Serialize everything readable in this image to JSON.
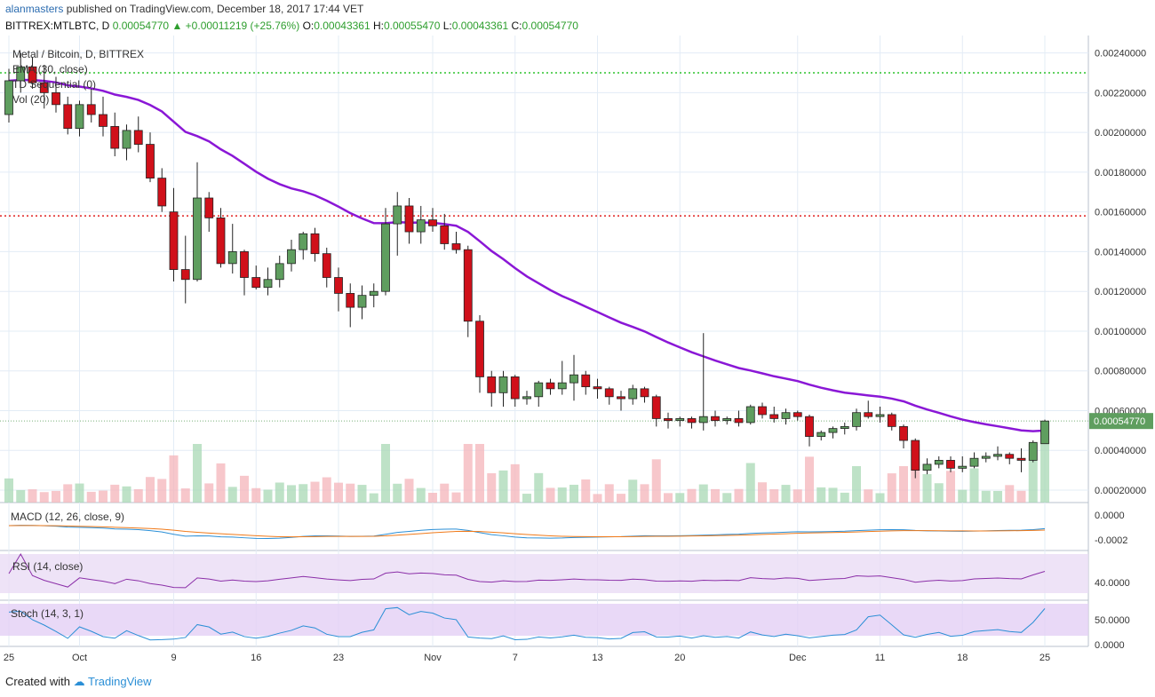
{
  "header": {
    "author": "alanmasters",
    "published_text": "published on TradingView.com, December 18, 2017 17:44 VET",
    "symbol": "BITTREX:MTLBTC, D",
    "last": "0.00054770",
    "change": "+0.00011219 (+25.76%)",
    "o_label": "O:",
    "o": "0.00043361",
    "h_label": "H:",
    "h": "0.00055470",
    "l_label": "L:",
    "l": "0.00043361",
    "c_label": "C:",
    "c": "0.00054770"
  },
  "legend": {
    "title": "Metal / Bitcoin, D, BITTREX",
    "ema": "EMA (30, close)",
    "td": "TD Sequential (0)",
    "vol": "Vol (20)"
  },
  "panes": {
    "macd": "MACD (12, 26, close, 9)",
    "rsi": "RSI (14, close)",
    "stoch": "Stoch (14, 3, 1)"
  },
  "colors": {
    "up": "#5f9e5f",
    "down": "#d0101a",
    "ema": "#8a17d6",
    "resistance": "#2fc42f",
    "support": "#e02020",
    "macd_line": "#2b8fd6",
    "signal_line": "#f07a1a",
    "rsi_line": "#8b2fa8",
    "stoch_k": "#2b8fd6",
    "stoch_d": "#e0401a",
    "grid": "#e3ecf6",
    "axis_text": "#333333"
  },
  "footer": {
    "created_with": "Created with",
    "brand": "TradingView"
  },
  "chart_data": {
    "type": "candlestick",
    "price_axis_labels": [
      "0.00240000",
      "0.00220000",
      "0.00200000",
      "0.00180000",
      "0.00160000",
      "0.00140000",
      "0.00120000",
      "0.00100000",
      "0.00080000",
      "0.00060000",
      "0.00040000",
      "0.00020000"
    ],
    "price_axis_values": [
      0.0024,
      0.0022,
      0.002,
      0.0018,
      0.0016,
      0.0014,
      0.0012,
      0.001,
      0.0008,
      0.0006,
      0.0004,
      0.0002
    ],
    "last_price_tag": "0.00054770",
    "last_price": 0.0005477,
    "resistance_level": 0.0023,
    "support_level": 0.00158,
    "x_labels": [
      "25",
      "Oct",
      "9",
      "16",
      "23",
      "Nov",
      "7",
      "13",
      "20",
      "Dec",
      "11",
      "18",
      "25"
    ],
    "x_label_index": [
      0,
      6,
      14,
      21,
      28,
      36,
      43,
      50,
      57,
      67,
      74,
      81,
      88
    ],
    "macd_axis_labels": [
      "0.0000",
      "-0.0002"
    ],
    "rsi_axis_labels": [
      "40.0000"
    ],
    "stoch_axis_labels": [
      "50.0000",
      "0.0000"
    ],
    "candles": [
      [
        0.00209,
        0.00232,
        0.00205,
        0.00226
      ],
      [
        0.00226,
        0.0024,
        0.0022,
        0.00233
      ],
      [
        0.00233,
        0.00238,
        0.00222,
        0.00225
      ],
      [
        0.00225,
        0.00234,
        0.00212,
        0.0022
      ],
      [
        0.0022,
        0.00228,
        0.0021,
        0.00214
      ],
      [
        0.00214,
        0.00218,
        0.00199,
        0.00202
      ],
      [
        0.00202,
        0.00216,
        0.00198,
        0.00214
      ],
      [
        0.00214,
        0.00222,
        0.00205,
        0.00209
      ],
      [
        0.00209,
        0.00218,
        0.00198,
        0.00203
      ],
      [
        0.00203,
        0.0021,
        0.00188,
        0.00192
      ],
      [
        0.00192,
        0.00204,
        0.00186,
        0.00201
      ],
      [
        0.00201,
        0.00208,
        0.0019,
        0.00194
      ],
      [
        0.00194,
        0.002,
        0.00175,
        0.00177
      ],
      [
        0.00177,
        0.00182,
        0.0016,
        0.00163
      ],
      [
        0.0016,
        0.00172,
        0.00125,
        0.00131
      ],
      [
        0.00131,
        0.00148,
        0.00114,
        0.00126
      ],
      [
        0.00126,
        0.00185,
        0.00125,
        0.00167
      ],
      [
        0.00167,
        0.0017,
        0.0015,
        0.00157
      ],
      [
        0.00157,
        0.00162,
        0.00132,
        0.00134
      ],
      [
        0.00134,
        0.00154,
        0.00129,
        0.0014
      ],
      [
        0.0014,
        0.00141,
        0.00118,
        0.00127
      ],
      [
        0.00127,
        0.00133,
        0.00121,
        0.00122
      ],
      [
        0.00122,
        0.00132,
        0.00118,
        0.00126
      ],
      [
        0.00126,
        0.00138,
        0.00122,
        0.00134
      ],
      [
        0.00134,
        0.00146,
        0.0013,
        0.00141
      ],
      [
        0.00141,
        0.0015,
        0.00136,
        0.00149
      ],
      [
        0.00149,
        0.00152,
        0.00135,
        0.00139
      ],
      [
        0.00139,
        0.00142,
        0.00122,
        0.00127
      ],
      [
        0.00127,
        0.00132,
        0.0011,
        0.00119
      ],
      [
        0.00119,
        0.00124,
        0.00102,
        0.00112
      ],
      [
        0.00112,
        0.00123,
        0.00106,
        0.00118
      ],
      [
        0.00118,
        0.00124,
        0.00112,
        0.0012
      ],
      [
        0.0012,
        0.00162,
        0.00118,
        0.00154
      ],
      [
        0.00154,
        0.0017,
        0.00138,
        0.00163
      ],
      [
        0.00163,
        0.00167,
        0.00144,
        0.0015
      ],
      [
        0.0015,
        0.00163,
        0.00144,
        0.00156
      ],
      [
        0.00156,
        0.00162,
        0.0015,
        0.00153
      ],
      [
        0.00153,
        0.00159,
        0.00141,
        0.00144
      ],
      [
        0.00144,
        0.0015,
        0.00139,
        0.00141
      ],
      [
        0.00141,
        0.00143,
        0.00097,
        0.00105
      ],
      [
        0.00105,
        0.00108,
        0.00069,
        0.00077
      ],
      [
        0.00077,
        0.0008,
        0.00062,
        0.00069
      ],
      [
        0.00069,
        0.0008,
        0.00062,
        0.00077
      ],
      [
        0.00077,
        0.00078,
        0.00062,
        0.00066
      ],
      [
        0.00066,
        0.0007,
        0.00063,
        0.00067
      ],
      [
        0.00067,
        0.00075,
        0.00062,
        0.00074
      ],
      [
        0.00074,
        0.00076,
        0.00068,
        0.00071
      ],
      [
        0.00071,
        0.00085,
        0.00068,
        0.00074
      ],
      [
        0.00074,
        0.00088,
        0.00065,
        0.00078
      ],
      [
        0.00078,
        0.0008,
        0.00068,
        0.00072
      ],
      [
        0.00072,
        0.00076,
        0.00066,
        0.00071
      ],
      [
        0.00071,
        0.00072,
        0.00063,
        0.00067
      ],
      [
        0.00067,
        0.0007,
        0.0006,
        0.00066
      ],
      [
        0.00066,
        0.00073,
        0.00063,
        0.00071
      ],
      [
        0.00071,
        0.00072,
        0.00064,
        0.00067
      ],
      [
        0.00067,
        0.00068,
        0.00052,
        0.00056
      ],
      [
        0.00056,
        0.00059,
        0.00051,
        0.00055
      ],
      [
        0.00055,
        0.00057,
        0.00052,
        0.00056
      ],
      [
        0.00056,
        0.00057,
        0.00051,
        0.00054
      ],
      [
        0.00054,
        0.00099,
        0.0005,
        0.00057
      ],
      [
        0.00057,
        0.0006,
        0.00052,
        0.00055
      ],
      [
        0.00055,
        0.00057,
        0.00053,
        0.00056
      ],
      [
        0.00056,
        0.0006,
        0.00052,
        0.00054
      ],
      [
        0.00054,
        0.00063,
        0.00053,
        0.00062
      ],
      [
        0.00062,
        0.00064,
        0.00056,
        0.00058
      ],
      [
        0.00058,
        0.00062,
        0.00054,
        0.00056
      ],
      [
        0.00056,
        0.00061,
        0.00053,
        0.00059
      ],
      [
        0.00059,
        0.0006,
        0.00055,
        0.00057
      ],
      [
        0.00057,
        0.00058,
        0.00042,
        0.00047
      ],
      [
        0.00047,
        0.0005,
        0.00045,
        0.00049
      ],
      [
        0.00049,
        0.00052,
        0.00046,
        0.00051
      ],
      [
        0.00051,
        0.00054,
        0.00048,
        0.00052
      ],
      [
        0.00052,
        0.00061,
        0.0005,
        0.00059
      ],
      [
        0.00059,
        0.00065,
        0.00056,
        0.00057
      ],
      [
        0.00057,
        0.00062,
        0.00054,
        0.00058
      ],
      [
        0.00058,
        0.00059,
        0.0005,
        0.00052
      ],
      [
        0.00052,
        0.00053,
        0.00041,
        0.00045
      ],
      [
        0.00045,
        0.00046,
        0.00026,
        0.0003
      ],
      [
        0.0003,
        0.00036,
        0.00028,
        0.00033
      ],
      [
        0.00033,
        0.00037,
        0.00031,
        0.00035
      ],
      [
        0.00035,
        0.00037,
        0.00029,
        0.00031
      ],
      [
        0.00031,
        0.00037,
        0.00029,
        0.00032
      ],
      [
        0.00032,
        0.00039,
        0.00031,
        0.00036
      ],
      [
        0.00036,
        0.00039,
        0.00034,
        0.00037
      ],
      [
        0.00037,
        0.00042,
        0.00035,
        0.00038
      ],
      [
        0.00038,
        0.00039,
        0.00033,
        0.00036
      ],
      [
        0.00036,
        0.00041,
        0.00029,
        0.00035
      ],
      [
        0.00035,
        0.00045,
        0.00034,
        0.00044
      ],
      [
        0.00043361,
        0.0005547,
        0.00043361,
        0.0005477
      ]
    ]
  }
}
